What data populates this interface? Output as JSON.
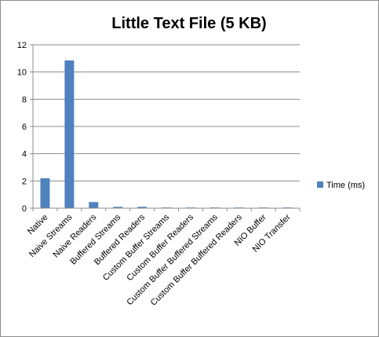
{
  "chart_data": {
    "type": "bar",
    "title": "Little Text File (5 KB)",
    "xlabel": "",
    "ylabel": "",
    "ylim": [
      0,
      12
    ],
    "yticks": [
      0,
      2,
      4,
      6,
      8,
      10,
      12
    ],
    "grid": true,
    "legend_position": "right",
    "categories": [
      "Native",
      "Naive Streams",
      "Naive Readers",
      "Buffered Streams",
      "Buffered Readers",
      "Custom Buffer Streams",
      "Custom Buffer Readers",
      "Custom Buffer Buffered Streams",
      "Custom Buffer Buffered Readers",
      "NIO Buffer",
      "NIO Transfer"
    ],
    "series": [
      {
        "name": "Time (ms)",
        "color": "#4f81bd",
        "values": [
          2.2,
          10.85,
          0.45,
          0.1,
          0.1,
          0.05,
          0.05,
          0.05,
          0.05,
          0.05,
          0.05
        ]
      }
    ]
  }
}
